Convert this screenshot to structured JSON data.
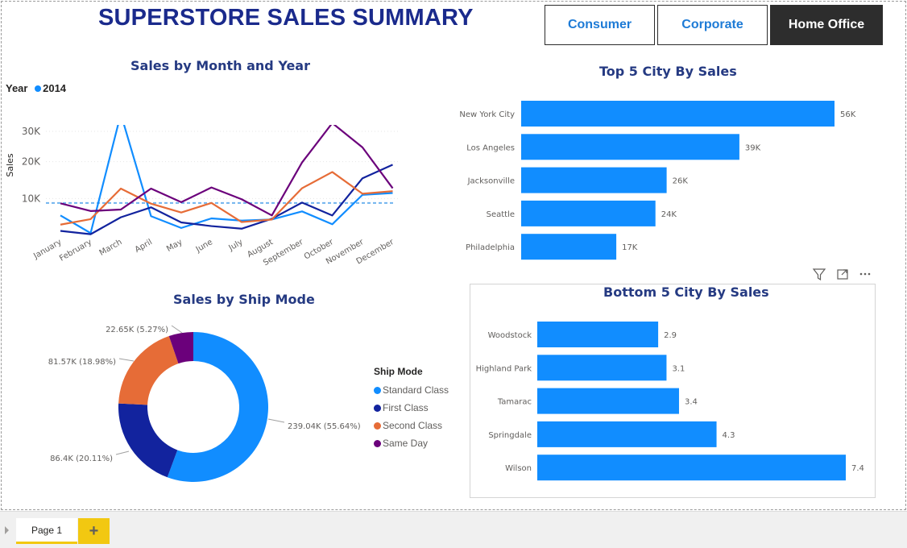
{
  "title": "SUPERSTORE SALES SUMMARY",
  "segments": [
    {
      "label": "Consumer",
      "active": false
    },
    {
      "label": "Corporate",
      "active": false
    },
    {
      "label": "Home Office",
      "active": true
    }
  ],
  "line_chart": {
    "title": "Sales by Month and Year",
    "legend_label": "Year",
    "legend_item": "2014",
    "ylabel": "Sales",
    "yticks": [
      "30K",
      "20K",
      "10K"
    ],
    "months": [
      "January",
      "February",
      "March",
      "April",
      "May",
      "June",
      "July",
      "August",
      "September",
      "October",
      "November",
      "December"
    ]
  },
  "top_cities": {
    "title": "Top 5 City By Sales",
    "cities": [
      "New York City",
      "Los Angeles",
      "Jacksonville",
      "Seattle",
      "Philadelphia"
    ],
    "labels": [
      "56K",
      "39K",
      "26K",
      "24K",
      "17K"
    ]
  },
  "donut": {
    "title": "Sales by Ship Mode",
    "legend_title": "Ship Mode",
    "slices": [
      {
        "name": "Standard Class",
        "label": "239.04K (55.64%)"
      },
      {
        "name": "First Class",
        "label": "86.4K (20.11%)"
      },
      {
        "name": "Second Class",
        "label": "81.57K (18.98%)"
      },
      {
        "name": "Same Day",
        "label": "22.65K (5.27%)"
      }
    ]
  },
  "bottom_cities": {
    "title": "Bottom 5 City By Sales",
    "cities": [
      "Woodstock",
      "Highland Park",
      "Tamarac",
      "Springdale",
      "Wilson"
    ],
    "labels": [
      "2.9",
      "3.1",
      "3.4",
      "4.3",
      "7.4"
    ]
  },
  "tabs": {
    "page1": "Page 1",
    "add": "+"
  },
  "colors": {
    "title": "#1a2a8c",
    "bar": "#118dff",
    "standard": "#118dff",
    "first": "#12239e",
    "second": "#e66c37",
    "sameday": "#6b007b",
    "avg": "#71b4ee",
    "active_button": "#2d2d2d"
  },
  "chart_data": [
    {
      "type": "line",
      "title": "Sales by Month and Year",
      "xlabel": "",
      "ylabel": "Sales",
      "x": [
        "January",
        "February",
        "March",
        "April",
        "May",
        "June",
        "July",
        "August",
        "September",
        "October",
        "November",
        "December"
      ],
      "ylim": [
        0,
        30000
      ],
      "series": [
        {
          "name": "Standard Class",
          "values": [
            5400,
            600,
            33000,
            5200,
            2000,
            4600,
            4000,
            4300,
            6500,
            3000,
            11000,
            11500
          ],
          "color": "#118dff"
        },
        {
          "name": "First Class",
          "values": [
            1200,
            300,
            4900,
            7600,
            3500,
            2500,
            1800,
            4500,
            8900,
            5400,
            15500,
            19200
          ],
          "color": "#12239e"
        },
        {
          "name": "Second Class",
          "values": [
            2900,
            4400,
            12700,
            8600,
            6200,
            8800,
            3600,
            4300,
            12800,
            17200,
            11300,
            12000
          ],
          "color": "#e66c37"
        },
        {
          "name": "Same Day",
          "values": [
            8700,
            6600,
            7000,
            12700,
            9000,
            13000,
            9800,
            5400,
            19800,
            30500,
            23900,
            12800
          ],
          "color": "#6b007b"
        }
      ],
      "reference_line": 8800,
      "grid": true
    },
    {
      "type": "bar",
      "title": "Top 5 City By Sales",
      "categories": [
        "New York City",
        "Los Angeles",
        "Jacksonville",
        "Seattle",
        "Philadelphia"
      ],
      "values": [
        56000,
        39000,
        26000,
        24000,
        17000
      ]
    },
    {
      "type": "pie",
      "title": "Sales by Ship Mode",
      "categories": [
        "Standard Class",
        "First Class",
        "Second Class",
        "Same Day"
      ],
      "values": [
        239040,
        86400,
        81570,
        22650
      ],
      "percents": [
        55.64,
        20.11,
        18.98,
        5.27
      ]
    },
    {
      "type": "bar",
      "title": "Bottom 5 City By Sales",
      "categories": [
        "Woodstock",
        "Highland Park",
        "Tamarac",
        "Springdale",
        "Wilson"
      ],
      "values": [
        2.9,
        3.1,
        3.4,
        4.3,
        7.4
      ]
    }
  ]
}
